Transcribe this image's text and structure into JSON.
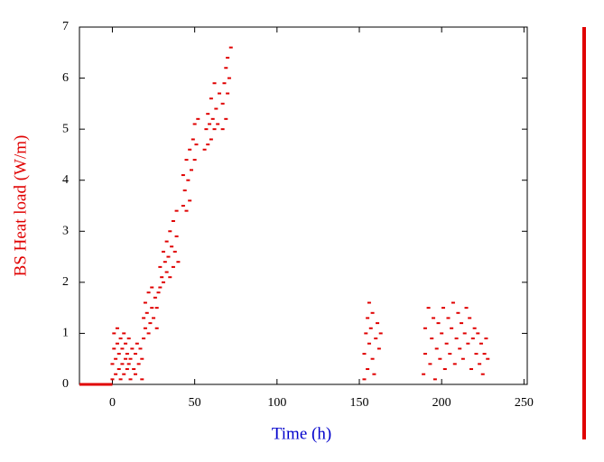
{
  "chart_data": {
    "type": "scatter",
    "xlabel": "Time (h)",
    "ylabel": "BS Heat load (W/m)",
    "xlim": [
      -20,
      252
    ],
    "ylim": [
      0,
      7
    ],
    "xticks": [
      0,
      50,
      100,
      150,
      200,
      250
    ],
    "yticks": [
      0,
      1,
      2,
      3,
      4,
      5,
      6,
      7
    ],
    "xlabel_color": "#0000cc",
    "ylabel_color": "#e00000",
    "series": [
      {
        "color": "#e00000",
        "mode": "line",
        "x": [
          -20,
          0
        ],
        "values": [
          0,
          0
        ]
      },
      {
        "color": "#e00000",
        "mode": "markers",
        "x": [
          0,
          0,
          1,
          1,
          2,
          2,
          3,
          3,
          4,
          4,
          5,
          5,
          6,
          6,
          7,
          7,
          8,
          8,
          9,
          9,
          10,
          10,
          11,
          11,
          12,
          13,
          14,
          14,
          15,
          16,
          17,
          18,
          18,
          19,
          19,
          20,
          20,
          21,
          22,
          22,
          23,
          24,
          24,
          25,
          26,
          27,
          27,
          28,
          29,
          29,
          30,
          31,
          31,
          32,
          33,
          33,
          34,
          35,
          35,
          36,
          37,
          37,
          38,
          39,
          39,
          40,
          43,
          43,
          44,
          45,
          45,
          46,
          47,
          47,
          48,
          49,
          50,
          50,
          51,
          52,
          56,
          57,
          58,
          58,
          59,
          60,
          60,
          61,
          62,
          62,
          63,
          64,
          65,
          67,
          67,
          68,
          69,
          69,
          70,
          70,
          71,
          72,
          153,
          153,
          154,
          155,
          155,
          156,
          156,
          157,
          158,
          158,
          159,
          160,
          161,
          162,
          163,
          189,
          190,
          190,
          192,
          193,
          194,
          195,
          196,
          197,
          198,
          199,
          200,
          201,
          202,
          203,
          204,
          205,
          206,
          207,
          208,
          209,
          210,
          211,
          212,
          213,
          214,
          215,
          216,
          217,
          218,
          219,
          220,
          221,
          222,
          223,
          224,
          225,
          226,
          227,
          228
        ],
        "values": [
          0.1,
          0.4,
          0.7,
          1.0,
          0.2,
          0.5,
          0.8,
          1.1,
          0.3,
          0.6,
          0.9,
          0.1,
          0.4,
          0.7,
          1.0,
          0.2,
          0.5,
          0.8,
          0.3,
          0.6,
          0.9,
          0.4,
          0.1,
          0.5,
          0.7,
          0.3,
          0.6,
          0.2,
          0.8,
          0.4,
          0.7,
          0.1,
          0.5,
          0.9,
          1.3,
          1.1,
          1.6,
          1.4,
          1.0,
          1.8,
          1.2,
          1.5,
          1.9,
          1.3,
          1.7,
          1.1,
          1.5,
          1.8,
          1.9,
          2.3,
          2.1,
          2.6,
          2.0,
          2.4,
          2.8,
          2.2,
          2.5,
          3.0,
          2.1,
          2.7,
          2.3,
          3.2,
          2.6,
          2.9,
          3.4,
          2.4,
          3.5,
          4.1,
          3.8,
          4.4,
          3.4,
          4.0,
          4.6,
          3.6,
          4.2,
          4.8,
          4.4,
          5.1,
          4.7,
          5.2,
          4.6,
          5.0,
          4.7,
          5.3,
          5.1,
          4.8,
          5.6,
          5.2,
          5.0,
          5.9,
          5.4,
          5.1,
          5.7,
          5.0,
          5.5,
          5.9,
          5.2,
          6.2,
          5.7,
          6.4,
          6.0,
          6.6,
          0.1,
          0.6,
          1.0,
          0.3,
          1.3,
          0.8,
          1.6,
          1.1,
          0.5,
          1.4,
          0.2,
          0.9,
          1.2,
          0.7,
          1.0,
          0.2,
          0.6,
          1.1,
          1.5,
          0.4,
          0.9,
          1.3,
          0.1,
          0.7,
          1.2,
          0.5,
          1.0,
          1.5,
          0.3,
          0.8,
          1.3,
          0.6,
          1.1,
          1.6,
          0.4,
          0.9,
          1.4,
          0.7,
          1.2,
          0.5,
          1.0,
          1.5,
          0.8,
          1.3,
          0.3,
          0.9,
          1.1,
          0.6,
          1.0,
          0.4,
          0.8,
          0.2,
          0.6,
          0.9,
          0.5
        ]
      }
    ]
  }
}
